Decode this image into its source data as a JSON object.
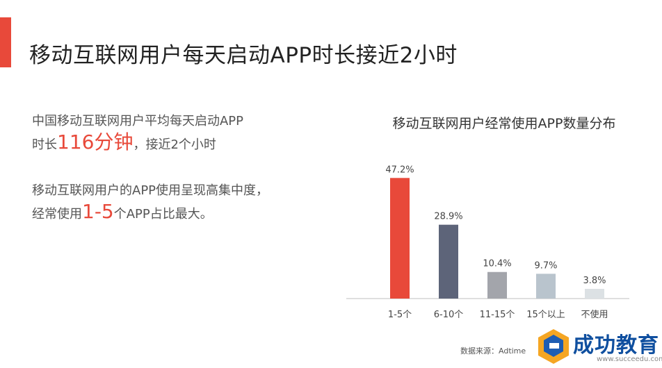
{
  "slide": {
    "title": "移动互联网用户每天启动APP时长接近2小时",
    "accent_color": "#e8493a"
  },
  "text_block": {
    "p1_line1": "中国移动互联网用户平均每天启动APP",
    "p1_line2_prefix": "时长",
    "p1_highlight": "116分钟",
    "p1_line2_suffix": "，接近2个小时",
    "p2_line1": "移动互联网用户的APP使用呈现高集中度，",
    "p2_line2_prefix": "经常使用",
    "p2_highlight": "1-5",
    "p2_line2_suffix": "个APP占比最大。"
  },
  "chart_data": {
    "type": "bar",
    "title": "移动互联网用户经常使用APP数量分布",
    "categories": [
      "1-5个",
      "6-10个",
      "11-15个",
      "15个以上",
      "不使用"
    ],
    "values": [
      47.2,
      28.9,
      10.4,
      9.7,
      3.8
    ],
    "data_labels": [
      "47.2%",
      "28.9%",
      "10.4%",
      "9.7%",
      "3.8%"
    ],
    "colors": [
      "#e8493a",
      "#5d6479",
      "#a3a5ab",
      "#b9c4cd",
      "#dce1e4"
    ],
    "ylim": [
      0,
      50
    ],
    "grid": false,
    "legend": "none"
  },
  "footer": {
    "source": "数据来源：Adtime"
  },
  "watermark": {
    "name": "成功教育",
    "url": "www.succeedu.com"
  }
}
